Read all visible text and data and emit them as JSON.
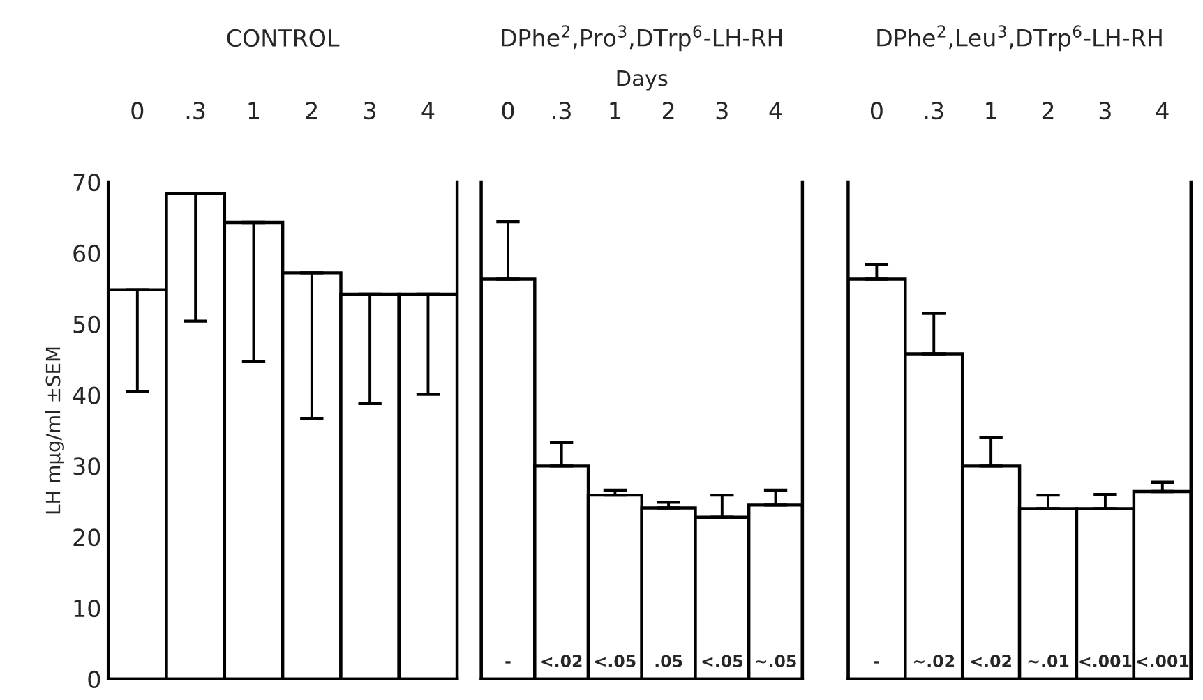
{
  "chart_data": [
    {
      "type": "bar",
      "title": "CONTROL",
      "ylabel": "LH mμg/ml ±SEM",
      "categories": [
        "0",
        ".3",
        "1",
        "2",
        "3",
        "4"
      ],
      "ylim": [
        0,
        70
      ],
      "yticks": [
        0,
        10,
        20,
        30,
        40,
        50,
        60,
        70
      ],
      "series": [
        {
          "color": "#ffffff",
          "values": [
            54.8,
            68.4,
            64.3,
            57.2,
            54.2,
            54.2
          ],
          "errors": [
            [
              40.5,
              54.8
            ],
            [
              50.4,
              68.4
            ],
            [
              44.7,
              64.3
            ],
            [
              36.7,
              57.2
            ],
            [
              38.8,
              54.2
            ],
            [
              40.1,
              54.2
            ]
          ]
        }
      ]
    },
    {
      "type": "bar",
      "title": "DPhe$^{2}$,Pro$^{3}$,DTrp$^{6}$-LH-RH",
      "xlabel": "Days",
      "categories": [
        "0",
        ".3",
        "1",
        "2",
        "3",
        "4"
      ],
      "ylim": [
        0,
        70
      ],
      "tick_labels": "x",
      "series": [
        {
          "color": "#ffffff",
          "values": [
            56.3,
            30.0,
            25.9,
            24.1,
            22.8,
            24.5
          ],
          "errors": [
            [
              56.3,
              64.4
            ],
            [
              30.0,
              33.3
            ],
            [
              25.9,
              26.6
            ],
            [
              24.1,
              24.9
            ],
            [
              22.8,
              25.9
            ],
            [
              24.5,
              26.6
            ]
          ]
        }
      ],
      "annotations": [
        {
          "text": "-",
          "x": "0",
          "y": 0
        },
        {
          "text": "<.02",
          "x": ".3",
          "y": 0
        },
        {
          "text": "<.05",
          "x": "1",
          "y": 0
        },
        {
          "text": ".05",
          "x": "2",
          "y": 0
        },
        {
          "text": "<.05",
          "x": "3",
          "y": 0
        },
        {
          "text": "~.05",
          "x": "4",
          "y": 0
        }
      ]
    },
    {
      "type": "bar",
      "title": "DPhe$^{2}$,Leu$^{3}$,DTrp$^{6}$-LH-RH",
      "categories": [
        "0",
        ".3",
        "1",
        "2",
        "3",
        "4"
      ],
      "ylim": [
        0,
        70
      ],
      "tick_labels": "x",
      "series": [
        {
          "color": "#ffffff",
          "values": [
            56.3,
            45.8,
            30.0,
            24.0,
            24.0,
            26.4
          ],
          "errors": [
            [
              56.3,
              58.4
            ],
            [
              45.8,
              51.5
            ],
            [
              30.0,
              34.0
            ],
            [
              24.0,
              25.9
            ],
            [
              24.0,
              26.0
            ],
            [
              26.4,
              27.7
            ]
          ]
        }
      ],
      "annotations": [
        {
          "text": "-",
          "x": "0",
          "y": 0
        },
        {
          "text": "~.02",
          "x": ".3",
          "y": 0
        },
        {
          "text": "<.02",
          "x": "1",
          "y": 0
        },
        {
          "text": "~.01",
          "x": "2",
          "y": 0
        },
        {
          "text": "<.001",
          "x": "3",
          "y": 0
        },
        {
          "text": "<.001",
          "x": "4",
          "y": 0
        }
      ]
    }
  ]
}
